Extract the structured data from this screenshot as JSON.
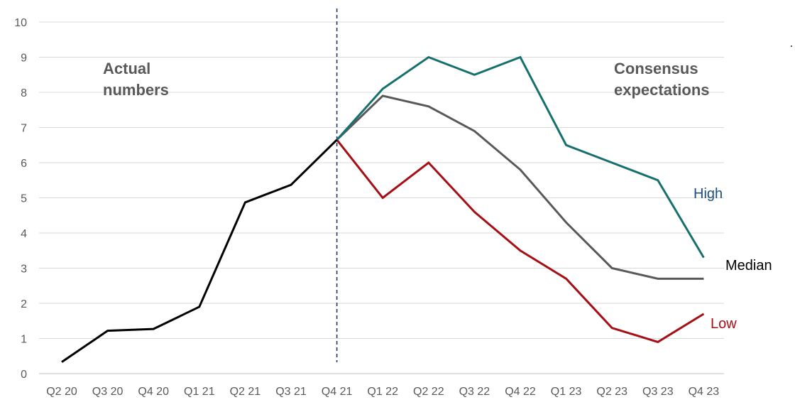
{
  "chart_data": {
    "type": "line",
    "categories": [
      "Q2 20",
      "Q3 20",
      "Q4 20",
      "Q1 21",
      "Q2 21",
      "Q3 21",
      "Q4 21",
      "Q1 22",
      "Q2 22",
      "Q3 22",
      "Q4 22",
      "Q1 23",
      "Q2 23",
      "Q3 23",
      "Q4 23"
    ],
    "yticks": [
      "0",
      "1",
      "2",
      "3",
      "4",
      "5",
      "6",
      "7",
      "8",
      "9",
      "10"
    ],
    "ylim": [
      0,
      10
    ],
    "grid": true,
    "divider_category": "Q4 21",
    "annotations": [
      {
        "lines": [
          "Actual",
          "numbers"
        ]
      },
      {
        "lines": [
          "Consensus",
          "expectations"
        ]
      }
    ],
    "series": [
      {
        "key": "actual",
        "name": "",
        "color": "#000000",
        "values": [
          0.33,
          1.22,
          1.27,
          1.9,
          4.87,
          5.37,
          6.65,
          null,
          null,
          null,
          null,
          null,
          null,
          null,
          null
        ]
      },
      {
        "key": "high",
        "name": "High",
        "color": "#17706e",
        "label_color": "#1f4e79",
        "values": [
          null,
          null,
          null,
          null,
          null,
          null,
          6.65,
          8.1,
          9.0,
          8.5,
          9.0,
          6.5,
          6.0,
          5.5,
          3.3
        ]
      },
      {
        "key": "median",
        "name": "Median",
        "color": "#595959",
        "label_color": "#000000",
        "values": [
          null,
          null,
          null,
          null,
          null,
          null,
          6.65,
          7.9,
          7.6,
          6.9,
          5.8,
          4.3,
          3.0,
          2.7,
          2.7
        ]
      },
      {
        "key": "low",
        "name": "Low",
        "color": "#a50f15",
        "label_color": "#a50f15",
        "values": [
          null,
          null,
          null,
          null,
          null,
          null,
          6.65,
          5.0,
          6.0,
          4.6,
          3.5,
          2.7,
          1.3,
          0.9,
          1.7
        ]
      }
    ]
  }
}
